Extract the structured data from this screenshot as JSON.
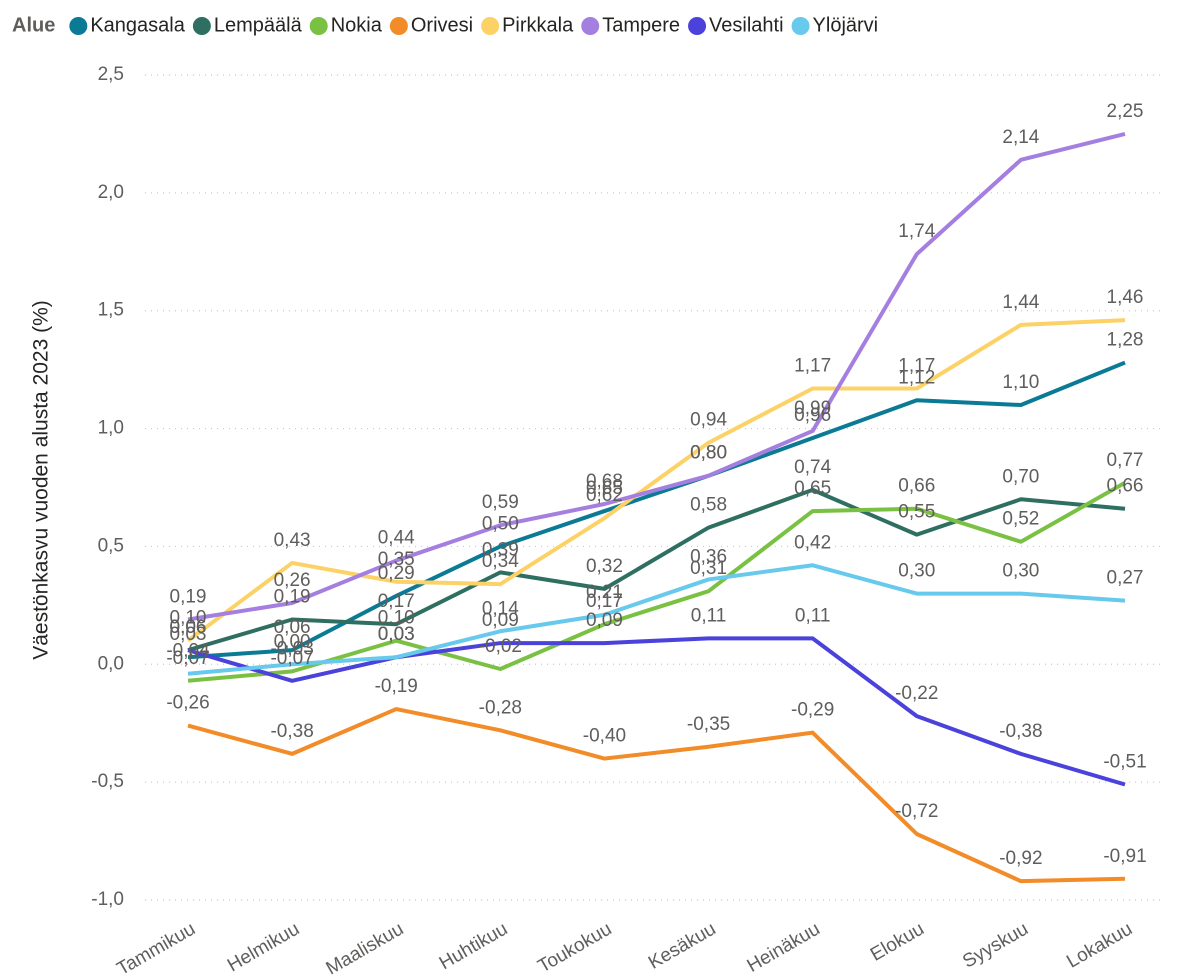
{
  "chart_data": {
    "type": "line",
    "legend_title": "Alue",
    "y_label": "Väestönkasvu vuoden alusta 2023 (%)",
    "categories": [
      "Tammikuu",
      "Helmikuu",
      "Maaliskuu",
      "Huhtikuu",
      "Toukokuu",
      "Kesäkuu",
      "Heinäkuu",
      "Elokuu",
      "Syyskuu",
      "Lokakuu"
    ],
    "ylim": [
      -1.0,
      2.5
    ],
    "yticks": [
      {
        "value": -1.0,
        "label": "-1,0"
      },
      {
        "value": -0.5,
        "label": "-0,5"
      },
      {
        "value": 0.0,
        "label": "0,0"
      },
      {
        "value": 0.5,
        "label": "0,5"
      },
      {
        "value": 1.0,
        "label": "1,0"
      },
      {
        "value": 1.5,
        "label": "1,5"
      },
      {
        "value": 2.0,
        "label": "2,0"
      },
      {
        "value": 2.5,
        "label": "2,5"
      }
    ],
    "grid": true,
    "legend": "top",
    "series": [
      {
        "name": "Kangasala",
        "color": "#0b7a94",
        "values": [
          0.03,
          0.06,
          0.29,
          0.5,
          0.65,
          0.8,
          0.96,
          1.12,
          1.1,
          1.28
        ],
        "value_labels": [
          "0,03",
          "0,06",
          "0,29",
          "0,50",
          "0,65",
          "0,80",
          "0,96",
          "1,12",
          "1,10",
          "1,28"
        ]
      },
      {
        "name": "Lempäälä",
        "color": "#2f6f62",
        "values": [
          0.06,
          0.19,
          0.17,
          0.39,
          0.32,
          0.58,
          0.74,
          0.55,
          0.7,
          0.66
        ],
        "value_labels": [
          "0,06",
          "0,19",
          "0,17",
          "0,39",
          "0,32",
          "0,58",
          "0,74",
          "0,55",
          "0,70",
          "0,66"
        ]
      },
      {
        "name": "Nokia",
        "color": "#7ac143",
        "values": [
          -0.07,
          -0.03,
          0.1,
          -0.02,
          0.17,
          0.31,
          0.65,
          0.66,
          0.52,
          0.77
        ],
        "value_labels": [
          "-0,07",
          "-0,03",
          "0,10",
          "-0,02",
          "0,17",
          "0,31",
          "0,65",
          "0,66",
          "0,52",
          "0,77"
        ]
      },
      {
        "name": "Orivesi",
        "color": "#f28c28",
        "values": [
          -0.26,
          -0.38,
          -0.19,
          -0.28,
          -0.4,
          -0.35,
          -0.29,
          -0.72,
          -0.92,
          -0.91
        ],
        "value_labels": [
          "-0,26",
          "-0,38",
          "-0,19",
          "-0,28",
          "-0,40",
          "-0,35",
          "-0,29",
          "-0,72",
          "-0,92",
          "-0,91"
        ]
      },
      {
        "name": "Pirkkala",
        "color": "#fcd267",
        "values": [
          0.1,
          0.43,
          0.35,
          0.34,
          0.62,
          0.94,
          1.17,
          1.17,
          1.44,
          1.46
        ],
        "value_labels": [
          "0,10",
          "0,43",
          "0,35",
          "0,34",
          "0,62",
          "0,94",
          "1,17",
          "1,17",
          "1,44",
          "1,46"
        ]
      },
      {
        "name": "Tampere",
        "color": "#a57fe0",
        "values": [
          0.19,
          0.26,
          0.44,
          0.59,
          0.68,
          0.8,
          0.99,
          1.74,
          2.14,
          2.25
        ],
        "value_labels": [
          "0,19",
          "0,26",
          "0,44",
          "0,59",
          "0,68",
          "0,80",
          "0,99",
          "1,74",
          "2,14",
          "2,25"
        ]
      },
      {
        "name": "Vesilahti",
        "color": "#4a42db",
        "values": [
          0.06,
          -0.07,
          0.03,
          0.09,
          0.09,
          0.11,
          0.11,
          -0.22,
          -0.38,
          -0.51
        ],
        "value_labels": [
          "0,06",
          "-0,07",
          "0,03",
          "0,09",
          "0,09",
          "0,11",
          "0,11",
          "-0,22",
          "-0,38",
          "-0,51"
        ]
      },
      {
        "name": "Ylöjärvi",
        "color": "#67c9ec",
        "values": [
          -0.04,
          0.0,
          0.03,
          0.14,
          0.21,
          0.36,
          0.42,
          0.3,
          0.3,
          0.27
        ],
        "value_labels": [
          "-0,04",
          "0,00",
          "0,03",
          "0,14",
          "0,21",
          "0,36",
          "0,42",
          "0,30",
          "0,30",
          "0,27"
        ]
      }
    ]
  }
}
